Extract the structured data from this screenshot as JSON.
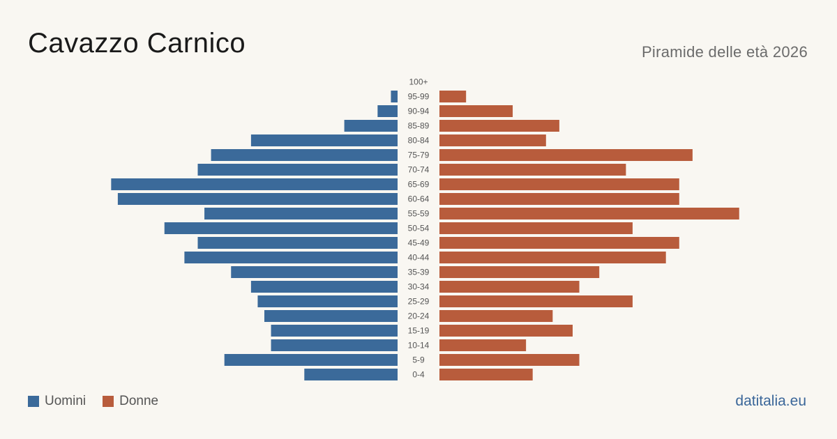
{
  "header": {
    "title": "Cavazzo Carnico",
    "subtitle": "Piramide delle età 2026"
  },
  "legend": {
    "male_label": "Uomini",
    "female_label": "Donne"
  },
  "brand": "datitalia.eu",
  "colors": {
    "male": "#3b6a9a",
    "female": "#b85c3c",
    "background": "#f9f7f2"
  },
  "chart_data": {
    "type": "bar",
    "orientation": "horizontal-pyramid",
    "categories": [
      "100+",
      "95-99",
      "90-94",
      "85-89",
      "80-84",
      "75-79",
      "70-74",
      "65-69",
      "60-64",
      "55-59",
      "50-54",
      "45-49",
      "40-44",
      "35-39",
      "30-34",
      "25-29",
      "20-24",
      "15-19",
      "10-14",
      "5-9",
      "0-4"
    ],
    "series": [
      {
        "name": "Uomini",
        "values": [
          0,
          1,
          3,
          8,
          22,
          28,
          30,
          43,
          42,
          29,
          35,
          30,
          32,
          25,
          22,
          21,
          20,
          19,
          19,
          26,
          14
        ]
      },
      {
        "name": "Donne",
        "values": [
          0,
          4,
          11,
          18,
          16,
          38,
          28,
          36,
          36,
          45,
          29,
          36,
          34,
          24,
          21,
          29,
          17,
          20,
          13,
          21,
          14
        ]
      }
    ]
  }
}
